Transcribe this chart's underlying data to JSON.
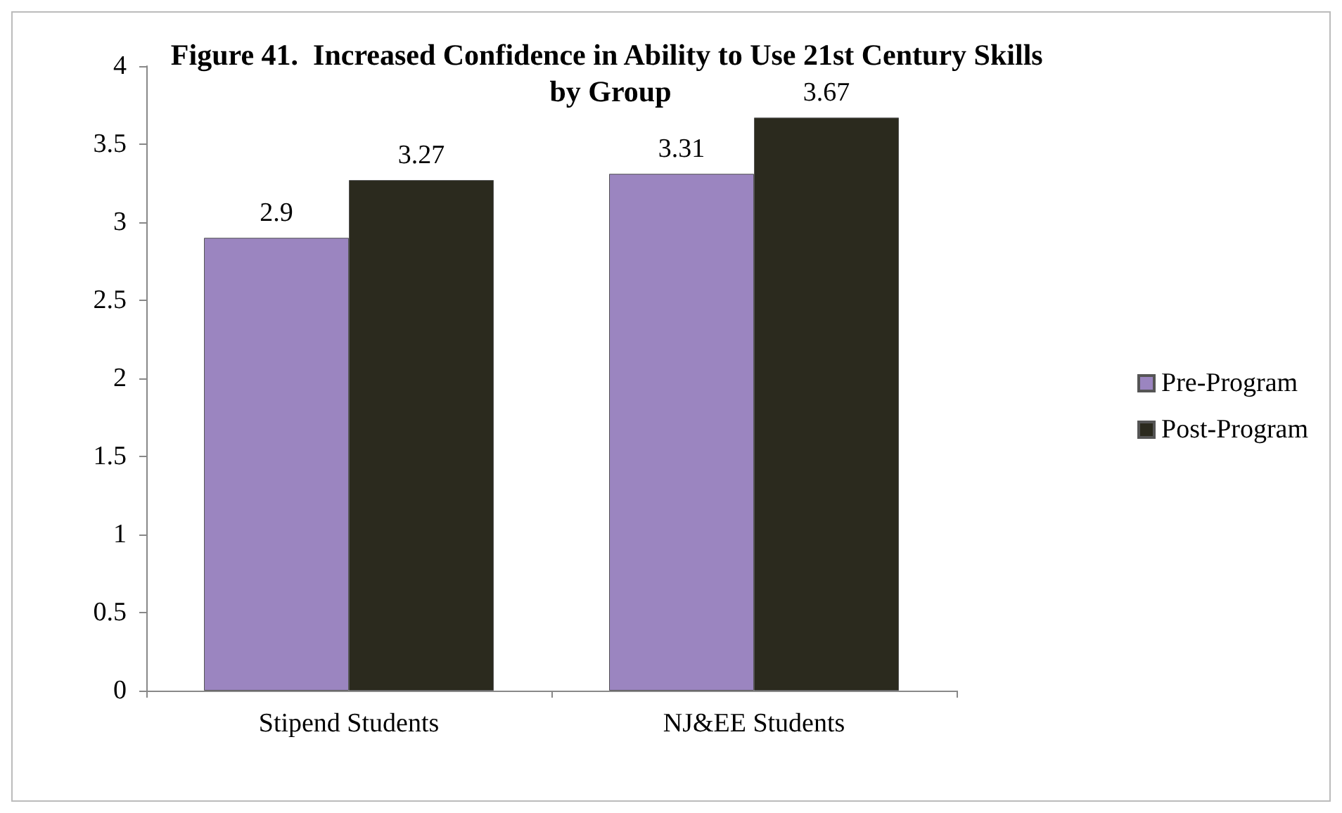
{
  "chart_data": {
    "type": "bar",
    "title": "Figure 41.  Increased Confidence in Ability to Use 21st Century Skills by Group",
    "categories": [
      "Stipend Students",
      "NJ&EE Students"
    ],
    "series": [
      {
        "name": "Pre-Program",
        "color": "#9b85c0",
        "values": [
          2.9,
          3.31
        ]
      },
      {
        "name": "Post-Program",
        "color": "#2b2a1e",
        "values": [
          3.27,
          3.67
        ]
      }
    ],
    "ylim": [
      0,
      4
    ],
    "yticks": [
      0,
      0.5,
      1,
      1.5,
      2,
      2.5,
      3,
      3.5,
      4
    ],
    "grid": false,
    "legend": "right",
    "data_labels": true
  }
}
